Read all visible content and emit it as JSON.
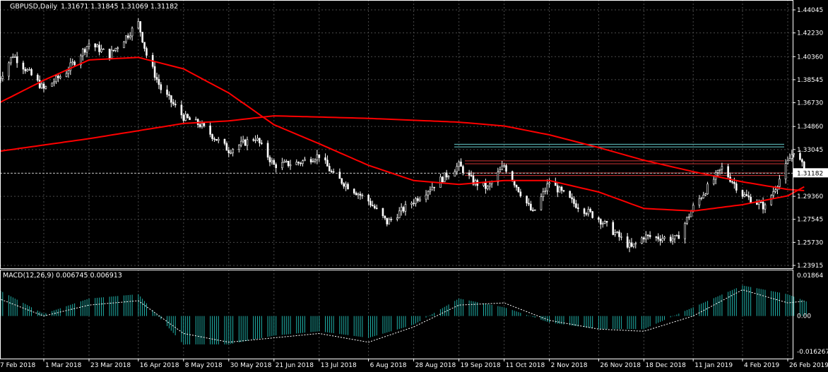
{
  "header": {
    "symbol_label": "GBPUSD,Daily",
    "ohlc": "1.31671 1.31845 1.31069 1.31182"
  },
  "macd": {
    "label": "MACD(12,26,9) 0.006745 0.006913",
    "y_ticks": [
      "0.01864",
      "0.00",
      "-0.016267"
    ]
  },
  "price_axis": {
    "ticks": [
      "1.44045",
      "1.42230",
      "1.40360",
      "1.38545",
      "1.36730",
      "1.34860",
      "1.33045",
      "1.31182",
      "1.29360",
      "1.27545",
      "1.25730",
      "1.23915"
    ],
    "current_price": "1.31182"
  },
  "time_axis": {
    "ticks": [
      "7 Feb 2018",
      "1 Mar 2018",
      "23 Mar 2018",
      "16 Apr 2018",
      "8 May 2018",
      "30 May 2018",
      "21 Jun 2018",
      "13 Jul 2018",
      "6 Aug 2018",
      "28 Aug 2018",
      "19 Sep 2018",
      "11 Oct 2018",
      "2 Nov 2018",
      "26 Nov 2018",
      "18 Dec 2018",
      "11 Jan 2019",
      "4 Feb 2019",
      "26 Feb 2019"
    ]
  },
  "colors": {
    "background": "#000000",
    "grid": "#4a4a4a",
    "bull": "#ffffff",
    "bear": "#ffffff",
    "ma": "#ff0000",
    "hline_cyan": "#66cccc",
    "hline_red": "#cc3333",
    "macd_hist": "#20b2aa",
    "macd_signal": "#ffffff"
  },
  "chart_data": {
    "type": "line",
    "title": "GBPUSD,Daily",
    "ylim": [
      1.23915,
      1.44045
    ],
    "close_series_anchors": [
      [
        "7 Feb 2018",
        1.385
      ],
      [
        "14 Feb 2018",
        1.405
      ],
      [
        "1 Mar 2018",
        1.378
      ],
      [
        "12 Mar 2018",
        1.392
      ],
      [
        "23 Mar 2018",
        1.414
      ],
      [
        "2 Apr 2018",
        1.405
      ],
      [
        "16 Apr 2018",
        1.43
      ],
      [
        "20 Apr 2018",
        1.405
      ],
      [
        "27 Apr 2018",
        1.378
      ],
      [
        "8 May 2018",
        1.356
      ],
      [
        "16 May 2018",
        1.35
      ],
      [
        "30 May 2018",
        1.33
      ],
      [
        "12 Jun 2018",
        1.34
      ],
      [
        "21 Jun 2018",
        1.318
      ],
      [
        "3 Jul 2018",
        1.32
      ],
      [
        "13 Jul 2018",
        1.326
      ],
      [
        "20 Jul 2018",
        1.31
      ],
      [
        "6 Aug 2018",
        1.29
      ],
      [
        "15 Aug 2018",
        1.273
      ],
      [
        "28 Aug 2018",
        1.29
      ],
      [
        "19 Sep 2018",
        1.318
      ],
      [
        "26 Sep 2018",
        1.305
      ],
      [
        "3 Oct 2018",
        1.3
      ],
      [
        "11 Oct 2018",
        1.318
      ],
      [
        "25 Oct 2018",
        1.28
      ],
      [
        "2 Nov 2018",
        1.305
      ],
      [
        "14 Nov 2018",
        1.288
      ],
      [
        "26 Nov 2018",
        1.276
      ],
      [
        "12 Dec 2018",
        1.253
      ],
      [
        "18 Dec 2018",
        1.262
      ],
      [
        "3 Jan 2019",
        1.26
      ],
      [
        "11 Jan 2019",
        1.285
      ],
      [
        "25 Jan 2019",
        1.316
      ],
      [
        "4 Feb 2019",
        1.295
      ],
      [
        "15 Feb 2019",
        1.285
      ],
      [
        "26 Feb 2019",
        1.32
      ],
      [
        "1 Mar 2019",
        1.33
      ],
      [
        "7 Mar 2019",
        1.31182
      ]
    ],
    "ma_fast_anchors": [
      [
        "7 Feb 2018",
        1.367
      ],
      [
        "1 Mar 2018",
        1.385
      ],
      [
        "23 Mar 2018",
        1.401
      ],
      [
        "16 Apr 2018",
        1.403
      ],
      [
        "8 May 2018",
        1.394
      ],
      [
        "30 May 2018",
        1.375
      ],
      [
        "21 Jun 2018",
        1.35
      ],
      [
        "13 Jul 2018",
        1.335
      ],
      [
        "6 Aug 2018",
        1.318
      ],
      [
        "28 Aug 2018",
        1.306
      ],
      [
        "19 Sep 2018",
        1.303
      ],
      [
        "11 Oct 2018",
        1.306
      ],
      [
        "2 Nov 2018",
        1.306
      ],
      [
        "26 Nov 2018",
        1.297
      ],
      [
        "18 Dec 2018",
        1.284
      ],
      [
        "11 Jan 2019",
        1.282
      ],
      [
        "4 Feb 2019",
        1.287
      ],
      [
        "26 Feb 2019",
        1.294
      ],
      [
        "7 Mar 2019",
        1.302
      ]
    ],
    "ma_slow_anchors": [
      [
        "7 Feb 2018",
        1.329
      ],
      [
        "23 Mar 2018",
        1.339
      ],
      [
        "8 May 2018",
        1.351
      ],
      [
        "30 May 2018",
        1.353
      ],
      [
        "21 Jun 2018",
        1.357
      ],
      [
        "6 Aug 2018",
        1.355
      ],
      [
        "19 Sep 2018",
        1.352
      ],
      [
        "11 Oct 2018",
        1.349
      ],
      [
        "2 Nov 2018",
        1.342
      ],
      [
        "26 Nov 2018",
        1.332
      ],
      [
        "18 Dec 2018",
        1.322
      ],
      [
        "11 Jan 2019",
        1.313
      ],
      [
        "4 Feb 2019",
        1.305
      ],
      [
        "26 Feb 2019",
        1.299
      ],
      [
        "7 Mar 2019",
        1.298
      ]
    ],
    "horizontal_levels": [
      1.3346,
      1.3325,
      1.3215,
      1.3192,
      1.312,
      1.31
    ],
    "macd_series": {
      "ylim": [
        -0.016267,
        0.01864
      ],
      "hist_anchors": [
        [
          "7 Feb 2018",
          0.012
        ],
        [
          "1 Mar 2018",
          0.001
        ],
        [
          "23 Mar 2018",
          0.008
        ],
        [
          "16 Apr 2018",
          0.01
        ],
        [
          "8 May 2018",
          -0.013
        ],
        [
          "30 May 2018",
          -0.013
        ],
        [
          "21 Jun 2018",
          -0.009
        ],
        [
          "13 Jul 2018",
          -0.007
        ],
        [
          "6 Aug 2018",
          -0.01
        ],
        [
          "28 Aug 2018",
          -0.004
        ],
        [
          "19 Sep 2018",
          0.008
        ],
        [
          "11 Oct 2018",
          0.004
        ],
        [
          "2 Nov 2018",
          -0.003
        ],
        [
          "26 Nov 2018",
          -0.006
        ],
        [
          "18 Dec 2018",
          -0.006
        ],
        [
          "11 Jan 2019",
          0.004
        ],
        [
          "4 Feb 2019",
          0.014
        ],
        [
          "26 Feb 2019",
          0.01
        ],
        [
          "7 Mar 2019",
          0.0067
        ]
      ],
      "signal_anchors": [
        [
          "7 Feb 2018",
          0.008
        ],
        [
          "1 Mar 2018",
          0.0
        ],
        [
          "23 Mar 2018",
          0.005
        ],
        [
          "16 Apr 2018",
          0.007
        ],
        [
          "8 May 2018",
          -0.008
        ],
        [
          "30 May 2018",
          -0.012
        ],
        [
          "21 Jun 2018",
          -0.01
        ],
        [
          "13 Jul 2018",
          -0.008
        ],
        [
          "6 Aug 2018",
          -0.012
        ],
        [
          "28 Aug 2018",
          -0.005
        ],
        [
          "19 Sep 2018",
          0.005
        ],
        [
          "11 Oct 2018",
          0.006
        ],
        [
          "2 Nov 2018",
          -0.002
        ],
        [
          "26 Nov 2018",
          -0.006
        ],
        [
          "18 Dec 2018",
          -0.007
        ],
        [
          "11 Jan 2019",
          0.0
        ],
        [
          "4 Feb 2019",
          0.012
        ],
        [
          "26 Feb 2019",
          0.006
        ],
        [
          "7 Mar 2019",
          0.0069
        ]
      ]
    }
  }
}
